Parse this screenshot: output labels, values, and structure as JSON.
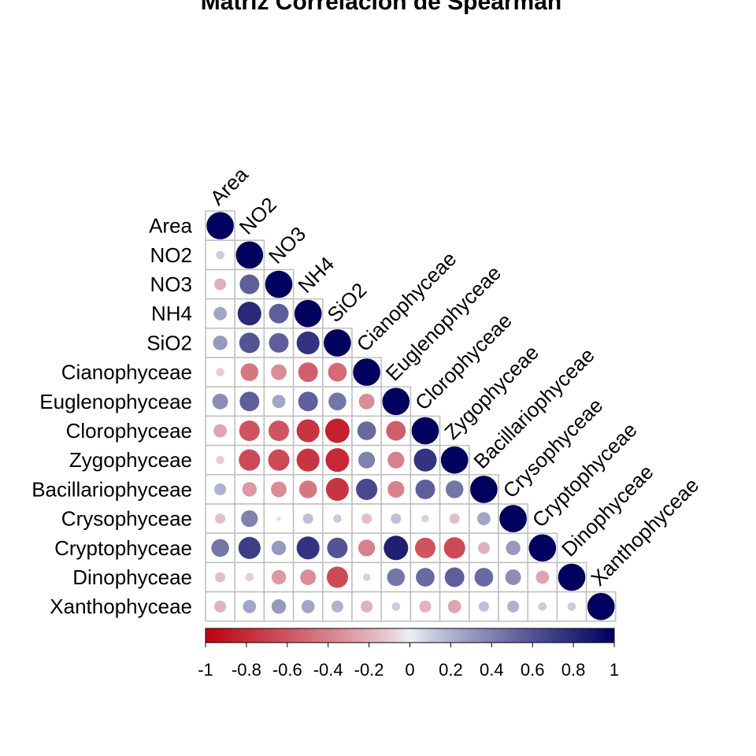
{
  "chart_data": {
    "type": "heatmap",
    "subtype": "correlation-lower-triangle-circles",
    "title": "Matriz Correlación de Spearman",
    "variables": [
      "Area",
      "NO2",
      "NO3",
      "NH4",
      "SiO2",
      "Cianophyceae",
      "Euglenophyceae",
      "Clorophyceae",
      "Zygophyceae",
      "Bacillariophyceae",
      "Crysophyceae",
      "Cryptophyceae",
      "Dinophyceae",
      "Xanthophyceae"
    ],
    "matrix": [
      [
        1
      ],
      [
        0.1,
        1
      ],
      [
        -0.2,
        0.55,
        1
      ],
      [
        0.25,
        0.8,
        0.55,
        1
      ],
      [
        0.3,
        0.6,
        0.55,
        0.75,
        1
      ],
      [
        -0.1,
        -0.45,
        -0.35,
        -0.55,
        -0.5,
        1
      ],
      [
        0.35,
        0.55,
        0.25,
        0.55,
        0.45,
        -0.35,
        1
      ],
      [
        -0.25,
        -0.6,
        -0.6,
        -0.75,
        -0.85,
        0.5,
        -0.55,
        1
      ],
      [
        -0.1,
        -0.65,
        -0.65,
        -0.75,
        -0.8,
        0.4,
        -0.4,
        0.75,
        1
      ],
      [
        0.2,
        -0.3,
        -0.35,
        -0.45,
        -0.75,
        0.65,
        -0.4,
        0.55,
        0.45,
        1
      ],
      [
        -0.15,
        0.4,
        -0.03,
        0.15,
        0.1,
        -0.15,
        0.15,
        0.08,
        -0.15,
        0.25,
        1
      ],
      [
        0.45,
        0.7,
        0.3,
        0.75,
        0.6,
        -0.4,
        0.85,
        -0.6,
        -0.65,
        -0.2,
        0.3,
        1
      ],
      [
        -0.15,
        -0.1,
        -0.3,
        -0.35,
        -0.65,
        0.08,
        0.45,
        0.5,
        0.55,
        0.5,
        0.35,
        -0.25,
        1
      ],
      [
        -0.2,
        0.25,
        0.3,
        0.25,
        0.2,
        -0.2,
        0.1,
        -0.2,
        -0.25,
        0.15,
        0.2,
        0.1,
        0.1,
        1
      ]
    ],
    "colorbar": {
      "ticks": [
        "-1",
        "-0.8",
        "-0.6",
        "-0.4",
        "-0.2",
        "0",
        "0.2",
        "0.4",
        "0.6",
        "0.8",
        "1"
      ],
      "range": [
        -1,
        1
      ],
      "colors": [
        "#B2182B",
        "#D6604D",
        "#F4A582",
        "#FDDBC7",
        "#FFFFFF",
        "#D1E5F0",
        "#92C5DE",
        "#4393C3",
        "#2166AC"
      ]
    },
    "palette": {
      "negative": "#C00010",
      "mid": "#EBEFF4",
      "positive": "#00005E",
      "grid": "#BEBEBE"
    },
    "legend": "bottom"
  }
}
